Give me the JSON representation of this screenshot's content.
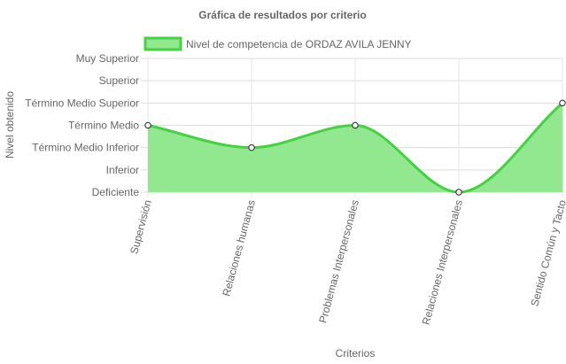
{
  "chart_data": {
    "type": "area",
    "title": "Gráfica de resultados por criterio",
    "xlabel": "Criterios",
    "ylabel": "Nivel obtenido",
    "y_levels": [
      "Deficiente",
      "Inferior",
      "Término Medio Inferior",
      "Término Medio",
      "Término Medio Superior",
      "Superior",
      "Muy Superior"
    ],
    "categories": [
      "Supervisión",
      "Relaciones humanas",
      "Problemas Interpersonales",
      "Relaciones Interpersonales",
      "Sentido Común y Tacto"
    ],
    "series": [
      {
        "name": "Nivel de competencia de ORDAZ AVILA JENNY",
        "values": [
          3,
          2,
          3,
          0,
          4
        ],
        "value_labels": [
          "Término Medio",
          "Término Medio Inferior",
          "Término Medio",
          "Deficiente",
          "Término Medio Superior"
        ],
        "fill_color": "#92e88f",
        "line_color": "#46d142"
      }
    ],
    "ylim": [
      0,
      6
    ],
    "grid": true,
    "legend": "top"
  }
}
